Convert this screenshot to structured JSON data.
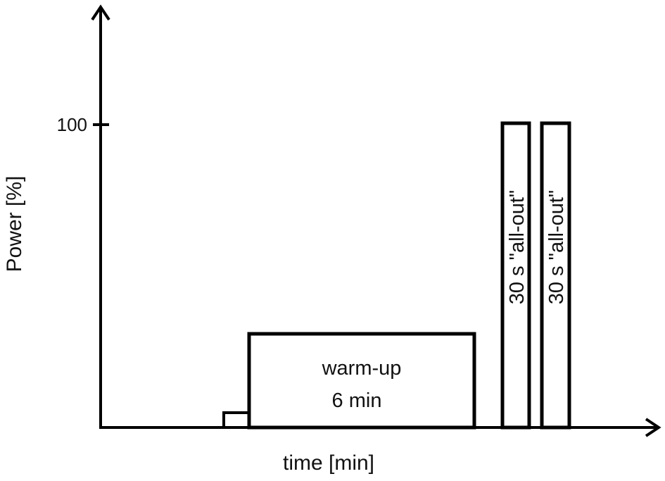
{
  "diagram": {
    "y_axis": {
      "label": "Power [%]",
      "tick_label": "100",
      "tick_value": 100
    },
    "x_axis": {
      "label": "time [min]"
    },
    "blocks": [
      {
        "id": "pre-step",
        "power_pct": 5
      },
      {
        "id": "warm-up",
        "power_pct": 31,
        "label_line1": "warm-up",
        "label_line2": "6 min"
      },
      {
        "id": "sprint-1",
        "power_pct": 100,
        "label": "30 s \"all-out\""
      },
      {
        "id": "sprint-2",
        "power_pct": 100,
        "label": "30 s \"all-out\""
      }
    ]
  },
  "colors": {
    "stroke": "#000000",
    "fill": "#ffffff",
    "text": "#111111"
  }
}
